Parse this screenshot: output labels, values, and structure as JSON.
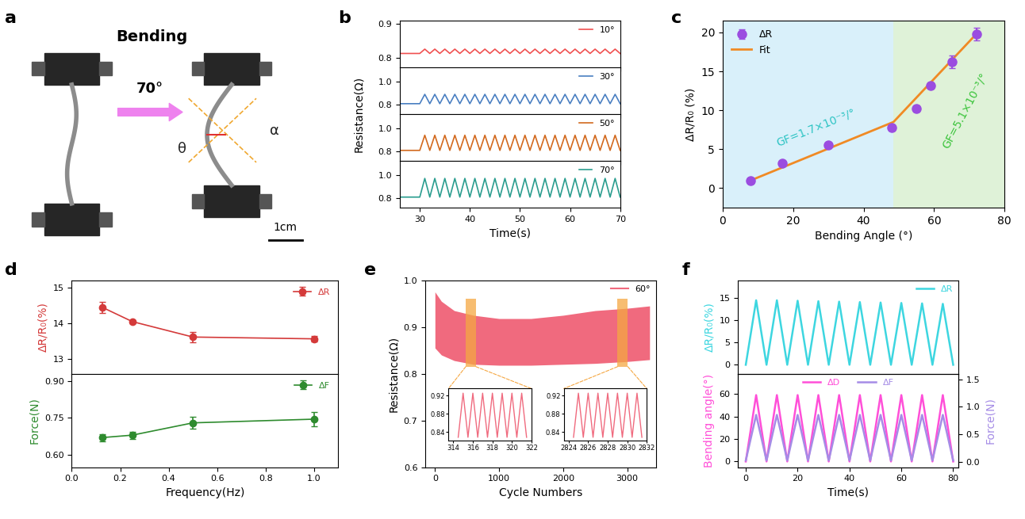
{
  "photo": {
    "panel": "a",
    "title": "Bending",
    "arrow_label": "70°",
    "angle_labels": [
      "α",
      "θ"
    ],
    "scale_bar": "1cm"
  },
  "chart_data": [
    {
      "panel": "b",
      "type": "line",
      "x_label": "Time(s)",
      "y_label": "Resistance(Ω)",
      "x": [
        26,
        30,
        31,
        32,
        33,
        34,
        35,
        36,
        37,
        38,
        39,
        40,
        41,
        42,
        43,
        44,
        45,
        46,
        47,
        48,
        49,
        50,
        51,
        52,
        53,
        54,
        55,
        56,
        57,
        58,
        59,
        60,
        61,
        62,
        63,
        64,
        65,
        66,
        67,
        68,
        69,
        70
      ],
      "xlim": [
        26,
        70
      ],
      "xticks": [
        30,
        40,
        50,
        60,
        70
      ],
      "legend": "upper right",
      "rows": [
        {
          "ylim": [
            0.77,
            0.91
          ],
          "yticks": [
            0.8,
            0.9
          ],
          "series": [
            {
              "name": "10°",
              "color": "#f05050",
              "values": [
                0.812,
                0.812,
                0.825,
                0.812,
                0.825,
                0.812,
                0.825,
                0.812,
                0.825,
                0.812,
                0.825,
                0.812,
                0.825,
                0.812,
                0.825,
                0.812,
                0.825,
                0.812,
                0.825,
                0.812,
                0.825,
                0.812,
                0.825,
                0.812,
                0.825,
                0.812,
                0.825,
                0.812,
                0.825,
                0.812,
                0.825,
                0.812,
                0.825,
                0.812,
                0.825,
                0.812,
                0.825,
                0.812,
                0.825,
                0.812,
                0.825,
                0.812
              ]
            }
          ]
        },
        {
          "ylim": [
            0.72,
            1.12
          ],
          "yticks": [
            0.8,
            {
              "value": 1.0,
              "label": "1.0"
            }
          ],
          "series": [
            {
              "name": "30°",
              "color": "#4a7fc1",
              "values": [
                0.81,
                0.81,
                0.89,
                0.81,
                0.89,
                0.81,
                0.89,
                0.81,
                0.89,
                0.81,
                0.89,
                0.81,
                0.89,
                0.81,
                0.89,
                0.81,
                0.89,
                0.81,
                0.89,
                0.81,
                0.89,
                0.81,
                0.89,
                0.81,
                0.89,
                0.81,
                0.89,
                0.81,
                0.89,
                0.81,
                0.89,
                0.81,
                0.89,
                0.81,
                0.89,
                0.81,
                0.89,
                0.81,
                0.89,
                0.81,
                0.89,
                0.81
              ]
            }
          ]
        },
        {
          "ylim": [
            0.72,
            1.12
          ],
          "yticks": [
            0.8,
            {
              "value": 1.0,
              "label": "1.0"
            }
          ],
          "series": [
            {
              "name": "50°",
              "color": "#d2691e",
              "values": [
                0.81,
                0.81,
                0.94,
                0.81,
                0.94,
                0.81,
                0.94,
                0.81,
                0.94,
                0.81,
                0.94,
                0.81,
                0.94,
                0.81,
                0.94,
                0.81,
                0.94,
                0.81,
                0.94,
                0.81,
                0.94,
                0.81,
                0.94,
                0.81,
                0.94,
                0.81,
                0.94,
                0.81,
                0.94,
                0.81,
                0.94,
                0.81,
                0.94,
                0.81,
                0.94,
                0.81,
                0.94,
                0.81,
                0.94,
                0.81,
                0.94,
                0.81
              ]
            }
          ]
        },
        {
          "ylim": [
            0.72,
            1.12
          ],
          "yticks": [
            0.8,
            {
              "value": 1.0,
              "label": "1.0"
            }
          ],
          "series": [
            {
              "name": "70°",
              "color": "#2a9d8f",
              "values": [
                0.81,
                0.81,
                0.97,
                0.81,
                0.97,
                0.81,
                0.97,
                0.81,
                0.97,
                0.81,
                0.97,
                0.81,
                0.97,
                0.81,
                0.97,
                0.81,
                0.97,
                0.81,
                0.97,
                0.81,
                0.97,
                0.81,
                0.97,
                0.81,
                0.97,
                0.81,
                0.97,
                0.81,
                0.97,
                0.81,
                0.97,
                0.81,
                0.97,
                0.81,
                0.97,
                0.81,
                0.97,
                0.81,
                0.97,
                0.81,
                0.97,
                0.81
              ]
            }
          ]
        }
      ]
    },
    {
      "panel": "c",
      "type": "scatter",
      "x_label": "Bending Angle (°)",
      "y_label": "ΔR/R₀ (%)",
      "xlim": [
        0,
        80
      ],
      "xticks": [
        0,
        20,
        40,
        60,
        80
      ],
      "ylim": [
        -2.5,
        21.5
      ],
      "yticks": [
        0,
        5,
        10,
        15,
        20
      ],
      "legend": "upper left",
      "regions": [
        {
          "x": [
            0,
            48.5
          ],
          "color": "#d9f0fa"
        },
        {
          "x": [
            48.5,
            80
          ],
          "color": "#dff2d8"
        }
      ],
      "series": [
        {
          "name": "ΔR",
          "type": "scatter",
          "color": "#9b4de0",
          "marker": "o",
          "x": [
            8,
            17,
            30,
            48,
            55,
            59,
            65,
            72
          ],
          "values": [
            1.0,
            3.2,
            5.5,
            7.8,
            10.2,
            13.2,
            16.2,
            19.8
          ],
          "errors": [
            0.3,
            0.3,
            0.3,
            0.4,
            0.4,
            0.4,
            0.8,
            0.8
          ]
        },
        {
          "name": "Fit",
          "type": "line",
          "color": "#f08a24",
          "x": [
            8,
            48.5,
            72
          ],
          "values": [
            1.0,
            8.5,
            19.8
          ]
        }
      ],
      "annotations": [
        {
          "text": "GF=1.7×10⁻³/°",
          "color": "#2ec4c4"
        },
        {
          "text": "GF=5.1×10⁻³/°",
          "color": "#3cc43c"
        }
      ]
    },
    {
      "panel": "d",
      "type": "line",
      "x_label": "Frequency(Hz)",
      "x": [
        0.125,
        0.25,
        0.5,
        1.0
      ],
      "xlim": [
        0,
        1.1
      ],
      "xticks": [
        {
          "value": 0.0,
          "label": "0.0"
        },
        0.2,
        0.4,
        0.6,
        0.8,
        {
          "value": 1.0,
          "label": "1.0"
        }
      ],
      "legend": "upper right",
      "rows": [
        {
          "y_label": "ΔR/R₀(%)",
          "ylim": [
            12.6,
            15.2
          ],
          "yticks": [
            13,
            14,
            15
          ],
          "series": [
            {
              "name": "ΔR",
              "color": "#d43a3a",
              "marker": "o",
              "values": [
                14.45,
                14.05,
                13.62,
                13.57
              ],
              "errors": [
                0.15,
                0.05,
                0.15,
                0.07
              ]
            }
          ]
        },
        {
          "y_label": "Force(N)",
          "ylim": [
            0.55,
            0.93
          ],
          "yticks": [
            {
              "value": 0.6,
              "label": "0.60"
            },
            0.75,
            {
              "value": 0.9,
              "label": "0.90"
            }
          ],
          "series": [
            {
              "name": "ΔF",
              "color": "#2e8b2e",
              "marker": "o",
              "values": [
                0.67,
                0.68,
                0.73,
                0.745
              ],
              "errors": [
                0.015,
                0.015,
                0.025,
                0.03
              ]
            }
          ]
        }
      ]
    },
    {
      "panel": "e",
      "type": "area",
      "x_label": "Cycle Numbers",
      "y_label": "Resistance(Ω)",
      "x": [
        0,
        100,
        300,
        600,
        1000,
        1500,
        2000,
        2500,
        3000,
        3350
      ],
      "xlim": [
        -150,
        3450
      ],
      "xticks": [
        0,
        1000,
        2000,
        3000
      ],
      "ylim": [
        0.6,
        1.0
      ],
      "yticks": [
        0.6,
        0.7,
        0.8,
        0.9,
        {
          "value": 1.0,
          "label": "1.0"
        }
      ],
      "legend": "upper right",
      "series": [
        {
          "name": "60°",
          "color": "#f06a7e",
          "upper": [
            0.975,
            0.955,
            0.935,
            0.925,
            0.918,
            0.918,
            0.925,
            0.935,
            0.94,
            0.945
          ],
          "lower": [
            0.855,
            0.84,
            0.828,
            0.82,
            0.818,
            0.818,
            0.82,
            0.822,
            0.826,
            0.83
          ]
        }
      ],
      "highlights": [
        {
          "x": [
            480,
            640
          ],
          "y": [
            0.815,
            0.96
          ],
          "color": "#f5a742"
        },
        {
          "x": [
            2850,
            3010
          ],
          "y": [
            0.815,
            0.96
          ],
          "color": "#f5a742"
        }
      ],
      "insets": [
        {
          "type": "line",
          "color": "#f06a7e",
          "xlim": [
            313.5,
            322
          ],
          "xticks": [
            314,
            316,
            318,
            320,
            322
          ],
          "ylim": [
            0.82,
            0.935
          ],
          "yticks": [
            0.84,
            0.88,
            0.92
          ],
          "x": [
            314.5,
            315,
            315.5,
            316,
            316.5,
            317,
            317.5,
            318,
            318.5,
            319,
            319.5,
            320,
            320.5,
            321,
            321.5
          ],
          "values": [
            0.828,
            0.925,
            0.828,
            0.925,
            0.828,
            0.925,
            0.828,
            0.925,
            0.828,
            0.925,
            0.828,
            0.925,
            0.828,
            0.925,
            0.828
          ]
        },
        {
          "type": "line",
          "color": "#f06a7e",
          "xlim": [
            2823.5,
            2832
          ],
          "xticks": [
            2824,
            2826,
            2828,
            2830,
            2832
          ],
          "ylim": [
            0.82,
            0.935
          ],
          "yticks": [
            0.84,
            0.88,
            0.92
          ],
          "x": [
            2824.5,
            2825,
            2825.5,
            2826,
            2826.5,
            2827,
            2827.5,
            2828,
            2828.5,
            2829,
            2829.5,
            2830,
            2830.5,
            2831,
            2831.5
          ],
          "values": [
            0.828,
            0.925,
            0.828,
            0.925,
            0.828,
            0.925,
            0.828,
            0.925,
            0.828,
            0.925,
            0.828,
            0.925,
            0.828,
            0.925,
            0.828
          ]
        }
      ]
    },
    {
      "panel": "f",
      "type": "line",
      "x_label": "Time(s)",
      "x": [
        0,
        4,
        8,
        12,
        16,
        20,
        24,
        28,
        32,
        36,
        40,
        44,
        48,
        52,
        56,
        60,
        64,
        68,
        72,
        76,
        80
      ],
      "xlim": [
        -3,
        82
      ],
      "xticks": [
        0,
        20,
        40,
        60,
        80
      ],
      "rows": [
        {
          "y_label": "ΔR/R₀(%)",
          "ylim": [
            -2,
            19
          ],
          "yticks": [
            0,
            5,
            10,
            15
          ],
          "legend": "upper right",
          "series": [
            {
              "name": "ΔR",
              "color": "#3dd6e0",
              "values": [
                0,
                14.5,
                0,
                14.5,
                0,
                14.4,
                0,
                14.3,
                0,
                14.2,
                0,
                14.1,
                0,
                14.0,
                0,
                13.9,
                0,
                13.8,
                0,
                13.7,
                0
              ]
            }
          ]
        },
        {
          "y_label": "Bending angle(°)",
          "ylim": [
            -5,
            78
          ],
          "yticks": [
            0,
            20,
            40,
            60
          ],
          "y2_label": "Force(N)",
          "y2lim": [
            -0.1,
            1.6
          ],
          "y2ticks": [
            {
              "value": 0.0,
              "label": "0.0"
            },
            0.5,
            {
              "value": 1.0,
              "label": "1.0"
            },
            1.5
          ],
          "legend": "upper center",
          "series": [
            {
              "name": "ΔD",
              "color": "#ff4fd8",
              "axis": "y",
              "values": [
                0,
                59,
                0,
                59,
                0,
                59,
                0,
                59,
                0,
                59,
                0,
                59,
                0,
                59,
                0,
                59,
                0,
                59,
                0,
                59,
                0
              ]
            },
            {
              "name": "ΔF",
              "color": "#a58ce6",
              "axis": "y2",
              "values": [
                0.02,
                0.85,
                0.02,
                0.85,
                0.02,
                0.85,
                0.02,
                0.85,
                0.02,
                0.85,
                0.02,
                0.85,
                0.02,
                0.85,
                0.02,
                0.85,
                0.02,
                0.85,
                0.02,
                0.85,
                0.02
              ]
            }
          ]
        }
      ]
    }
  ]
}
